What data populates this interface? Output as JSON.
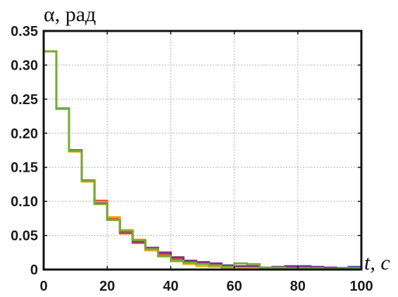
{
  "chart_data": {
    "type": "line",
    "step": true,
    "xlabel": "t, c",
    "ylabel": "α, рад",
    "xlim": [
      0,
      100
    ],
    "ylim": [
      0,
      0.35
    ],
    "xticks": [
      "0",
      "20",
      "40",
      "60",
      "80",
      "100"
    ],
    "yticks": [
      "0",
      "0.05",
      "0.10",
      "0.15",
      "0.20",
      "0.25",
      "0.30",
      "0.35"
    ],
    "grid": true,
    "x": [
      0,
      4,
      8,
      12,
      16,
      20,
      24,
      28,
      32,
      36,
      40,
      44,
      48,
      52,
      56,
      60,
      64,
      68,
      72,
      76,
      80,
      84,
      88,
      92,
      96,
      100
    ],
    "series": [
      {
        "color": "#0072BD",
        "values": [
          0.32,
          0.237,
          0.174,
          0.13,
          0.098,
          0.075,
          0.055,
          0.042,
          0.031,
          0.024,
          0.016,
          0.012,
          0.01,
          0.008,
          0.006,
          0.004,
          0.004,
          0.003,
          0.003,
          0.003,
          0.004,
          0.003,
          0.002,
          0.002,
          0.004,
          0.004
        ]
      },
      {
        "color": "#D95319",
        "values": [
          0.32,
          0.236,
          0.175,
          0.131,
          0.101,
          0.074,
          0.053,
          0.039,
          0.029,
          0.022,
          0.015,
          0.012,
          0.009,
          0.007,
          0.005,
          0.003,
          0.002,
          0.002,
          0.002,
          0.003,
          0.003,
          0.002,
          0.002,
          0.002,
          0.003,
          0.003
        ]
      },
      {
        "color": "#EDB120",
        "values": [
          0.32,
          0.237,
          0.173,
          0.129,
          0.099,
          0.077,
          0.058,
          0.044,
          0.028,
          0.019,
          0.012,
          0.008,
          0.005,
          0.004,
          0.003,
          0.002,
          0.002,
          0.001,
          0.002,
          0.001,
          0.002,
          0.003,
          0.002,
          0.001,
          0.002,
          0.002
        ]
      },
      {
        "color": "#7E2F8E",
        "values": [
          0.32,
          0.236,
          0.175,
          0.13,
          0.097,
          0.073,
          0.056,
          0.041,
          0.032,
          0.025,
          0.018,
          0.013,
          0.011,
          0.009,
          0.006,
          0.005,
          0.005,
          0.002,
          0.004,
          0.005,
          0.005,
          0.004,
          0.003,
          0.002,
          0.003,
          0.006
        ]
      },
      {
        "color": "#77AC30",
        "values": [
          0.32,
          0.236,
          0.174,
          0.13,
          0.096,
          0.073,
          0.057,
          0.043,
          0.03,
          0.02,
          0.013,
          0.01,
          0.008,
          0.006,
          0.004,
          0.009,
          0.008,
          0.003,
          0.003,
          0.001,
          0.002,
          0.002,
          0.001,
          0.001,
          0.002,
          0.002
        ]
      }
    ]
  }
}
